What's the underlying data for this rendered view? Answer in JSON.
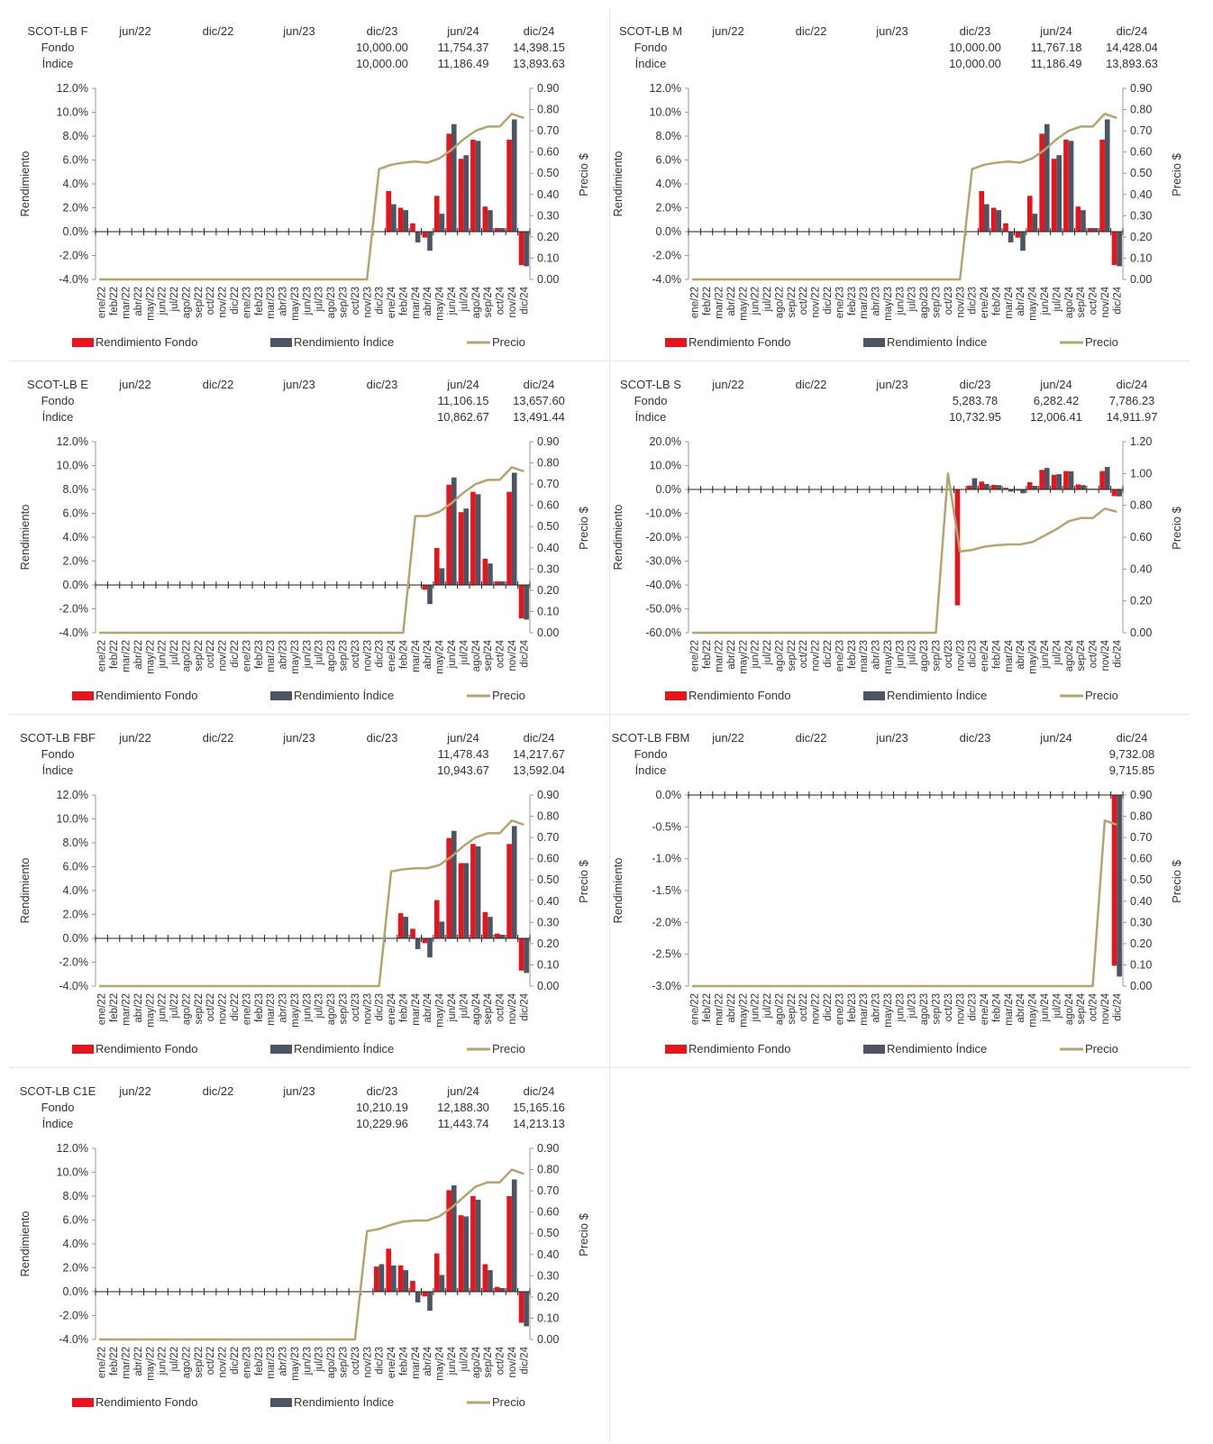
{
  "colors": {
    "fund": "#e8141b",
    "index": "#4b5563",
    "price": "#b5a370",
    "axis": "#333333"
  },
  "legend": {
    "fund": "Rendimiento Fondo",
    "index": "Rendimiento Índice",
    "price": "Precio"
  },
  "months": [
    "ene/22",
    "feb/22",
    "mar/22",
    "abr/22",
    "may/22",
    "jun/22",
    "jul/22",
    "ago/22",
    "sep/22",
    "oct/22",
    "nov/22",
    "dic/22",
    "ene/23",
    "feb/23",
    "mar/23",
    "abr/23",
    "may/23",
    "jun/23",
    "jul/23",
    "ago/23",
    "sep/23",
    "oct/23",
    "nov/23",
    "dic/23",
    "ene/24",
    "feb/24",
    "mar/24",
    "abr/24",
    "may/24",
    "jun/24",
    "jul/24",
    "ago/24",
    "sep/24",
    "oct/24",
    "nov/24",
    "dic/24"
  ],
  "header_row_labels": [
    "Fondo",
    "Índice"
  ],
  "chart_data": [
    {
      "type": "bar",
      "name": "SCOT-LB F",
      "header_cols": [
        "jun/22",
        "dic/22",
        "jun/23",
        "dic/23",
        "jun/24",
        "dic/24"
      ],
      "fondo": [
        "",
        "",
        "",
        "10,000.00",
        "11,754.37",
        "14,398.15"
      ],
      "indice": [
        "",
        "",
        "",
        "10,000.00",
        "11,186.49",
        "13,893.63"
      ],
      "ylabel": "Rendimiento",
      "y2label": "Precio $",
      "yticks": [
        "12.0%",
        "10.0%",
        "8.0%",
        "6.0%",
        "4.0%",
        "2.0%",
        "0.0%",
        "-2.0%",
        "-4.0%"
      ],
      "y2ticks": [
        "0.90",
        "0.80",
        "0.70",
        "0.60",
        "0.50",
        "0.40",
        "0.30",
        "0.20",
        "0.10",
        "0.00"
      ],
      "ylim": [
        -4,
        12
      ],
      "y2lim": [
        0,
        0.9
      ],
      "fund": [
        0,
        0,
        0,
        0,
        0,
        0,
        0,
        0,
        0,
        0,
        0,
        0,
        0,
        0,
        0,
        0,
        0,
        0,
        0,
        0,
        0,
        0,
        0,
        0,
        3.4,
        2.0,
        0.7,
        -0.5,
        3.0,
        8.2,
        6.1,
        7.7,
        2.1,
        0.3,
        7.7,
        -2.8
      ],
      "index": [
        0,
        0,
        0,
        0,
        0,
        0,
        0,
        0,
        0,
        0,
        0,
        0,
        0,
        0,
        0,
        0,
        0,
        0,
        0,
        0,
        0,
        0,
        0,
        0,
        2.3,
        1.8,
        -0.9,
        -1.6,
        1.5,
        9.0,
        6.4,
        7.6,
        1.8,
        0.3,
        9.4,
        -2.9
      ],
      "price": [
        0,
        0,
        0,
        0,
        0,
        0,
        0,
        0,
        0,
        0,
        0,
        0,
        0,
        0,
        0,
        0,
        0,
        0,
        0,
        0,
        0,
        0,
        0,
        0.52,
        0.54,
        0.55,
        0.555,
        0.55,
        0.57,
        0.61,
        0.66,
        0.7,
        0.72,
        0.72,
        0.78,
        0.76
      ],
      "price_start": 22
    },
    {
      "type": "bar",
      "name": "SCOT-LB M",
      "header_cols": [
        "jun/22",
        "dic/22",
        "jun/23",
        "dic/23",
        "jun/24",
        "dic/24"
      ],
      "fondo": [
        "",
        "",
        "",
        "10,000.00",
        "11,767.18",
        "14,428.04"
      ],
      "indice": [
        "",
        "",
        "",
        "10,000.00",
        "11,186.49",
        "13,893.63"
      ],
      "ylabel": "Rendimiento",
      "y2label": "Precio $",
      "yticks": [
        "12.0%",
        "10.0%",
        "8.0%",
        "6.0%",
        "4.0%",
        "2.0%",
        "0.0%",
        "-2.0%",
        "-4.0%"
      ],
      "y2ticks": [
        "0.90",
        "0.80",
        "0.70",
        "0.60",
        "0.50",
        "0.40",
        "0.30",
        "0.20",
        "0.10",
        "0.00"
      ],
      "ylim": [
        -4,
        12
      ],
      "y2lim": [
        0,
        0.9
      ],
      "fund": [
        0,
        0,
        0,
        0,
        0,
        0,
        0,
        0,
        0,
        0,
        0,
        0,
        0,
        0,
        0,
        0,
        0,
        0,
        0,
        0,
        0,
        0,
        0,
        0,
        3.4,
        2.0,
        0.7,
        -0.5,
        3.0,
        8.2,
        6.1,
        7.7,
        2.1,
        0.3,
        7.7,
        -2.8
      ],
      "index": [
        0,
        0,
        0,
        0,
        0,
        0,
        0,
        0,
        0,
        0,
        0,
        0,
        0,
        0,
        0,
        0,
        0,
        0,
        0,
        0,
        0,
        0,
        0,
        0,
        2.3,
        1.8,
        -0.9,
        -1.6,
        1.5,
        9.0,
        6.4,
        7.6,
        1.8,
        0.3,
        9.4,
        -2.9
      ],
      "price": [
        0,
        0,
        0,
        0,
        0,
        0,
        0,
        0,
        0,
        0,
        0,
        0,
        0,
        0,
        0,
        0,
        0,
        0,
        0,
        0,
        0,
        0,
        0,
        0.52,
        0.54,
        0.55,
        0.555,
        0.55,
        0.57,
        0.61,
        0.66,
        0.7,
        0.72,
        0.72,
        0.78,
        0.76
      ],
      "price_start": 22
    },
    {
      "type": "bar",
      "name": "SCOT-LB E",
      "header_cols": [
        "jun/22",
        "dic/22",
        "jun/23",
        "dic/23",
        "jun/24",
        "dic/24"
      ],
      "fondo": [
        "",
        "",
        "",
        "",
        "11,106.15",
        "13,657.60"
      ],
      "indice": [
        "",
        "",
        "",
        "",
        "10,862.67",
        "13,491.44"
      ],
      "ylabel": "Rendimiento",
      "y2label": "Precio $",
      "yticks": [
        "12.0%",
        "10.0%",
        "8.0%",
        "6.0%",
        "4.0%",
        "2.0%",
        "0.0%",
        "-2.0%",
        "-4.0%"
      ],
      "y2ticks": [
        "0.90",
        "0.80",
        "0.70",
        "0.60",
        "0.50",
        "0.40",
        "0.30",
        "0.20",
        "0.10",
        "0.00"
      ],
      "ylim": [
        -4,
        12
      ],
      "y2lim": [
        0,
        0.9
      ],
      "fund": [
        0,
        0,
        0,
        0,
        0,
        0,
        0,
        0,
        0,
        0,
        0,
        0,
        0,
        0,
        0,
        0,
        0,
        0,
        0,
        0,
        0,
        0,
        0,
        0,
        0,
        0,
        0,
        -0.4,
        3.1,
        8.4,
        6.1,
        7.8,
        2.2,
        0.3,
        7.8,
        -2.8
      ],
      "index": [
        0,
        0,
        0,
        0,
        0,
        0,
        0,
        0,
        0,
        0,
        0,
        0,
        0,
        0,
        0,
        0,
        0,
        0,
        0,
        0,
        0,
        0,
        0,
        0,
        0,
        0,
        0,
        -1.6,
        1.4,
        9.0,
        6.4,
        7.6,
        1.8,
        0.3,
        9.4,
        -2.9
      ],
      "price": [
        0,
        0,
        0,
        0,
        0,
        0,
        0,
        0,
        0,
        0,
        0,
        0,
        0,
        0,
        0,
        0,
        0,
        0,
        0,
        0,
        0,
        0,
        0,
        0,
        0,
        0,
        0.55,
        0.55,
        0.57,
        0.61,
        0.66,
        0.7,
        0.72,
        0.72,
        0.78,
        0.76
      ],
      "price_start": 25
    },
    {
      "type": "bar",
      "name": "SCOT-LB S",
      "header_cols": [
        "jun/22",
        "dic/22",
        "jun/23",
        "dic/23",
        "jun/24",
        "dic/24"
      ],
      "fondo": [
        "",
        "",
        "",
        "5,283.78",
        "6,282.42",
        "7,786.23"
      ],
      "indice": [
        "",
        "",
        "",
        "10,732.95",
        "12,006.41",
        "14,911.97"
      ],
      "ylabel": "Rendimiento",
      "y2label": "Precio $",
      "yticks": [
        "20.0%",
        "10.0%",
        "0.0%",
        "-10.0%",
        "-20.0%",
        "-30.0%",
        "-40.0%",
        "-50.0%",
        "-60.0%"
      ],
      "y2ticks": [
        "1.20",
        "1.00",
        "0.80",
        "0.60",
        "0.40",
        "0.20",
        "0.00"
      ],
      "ylim": [
        -60,
        20
      ],
      "y2lim": [
        0,
        1.2
      ],
      "fund": [
        0,
        0,
        0,
        0,
        0,
        0,
        0,
        0,
        0,
        0,
        0,
        0,
        0,
        0,
        0,
        0,
        0,
        0,
        0,
        0,
        0,
        0,
        -48.5,
        1.6,
        3.3,
        1.9,
        0.7,
        -0.5,
        3.0,
        8.2,
        6.1,
        7.7,
        2.1,
        0.3,
        7.7,
        -2.8
      ],
      "index": [
        0,
        0,
        0,
        0,
        0,
        0,
        0,
        0,
        0,
        0,
        0,
        0,
        0,
        0,
        0,
        0,
        0,
        0,
        0,
        0,
        0,
        0,
        0,
        4.7,
        2.3,
        1.8,
        -0.9,
        -1.6,
        1.5,
        9.0,
        6.4,
        7.6,
        1.8,
        0.3,
        9.4,
        -2.9
      ],
      "price": [
        0,
        0,
        0,
        0,
        0,
        0,
        0,
        0,
        0,
        0,
        0,
        0,
        0,
        0,
        0,
        0,
        0,
        0,
        0,
        0,
        0,
        1.0,
        0.51,
        0.52,
        0.54,
        0.55,
        0.555,
        0.555,
        0.57,
        0.61,
        0.65,
        0.7,
        0.72,
        0.72,
        0.78,
        0.76
      ],
      "price_start": 20
    },
    {
      "type": "bar",
      "name": "SCOT-LB FBF",
      "header_cols": [
        "jun/22",
        "dic/22",
        "jun/23",
        "dic/23",
        "jun/24",
        "dic/24"
      ],
      "fondo": [
        "",
        "",
        "",
        "",
        "11,478.43",
        "14,217.67"
      ],
      "indice": [
        "",
        "",
        "",
        "",
        "10,943.67",
        "13,592.04"
      ],
      "ylabel": "Rendimiento",
      "y2label": "Precio $",
      "yticks": [
        "12.0%",
        "10.0%",
        "8.0%",
        "6.0%",
        "4.0%",
        "2.0%",
        "0.0%",
        "-2.0%",
        "-4.0%"
      ],
      "y2ticks": [
        "0.90",
        "0.80",
        "0.70",
        "0.60",
        "0.50",
        "0.40",
        "0.30",
        "0.20",
        "0.10",
        "0.00"
      ],
      "ylim": [
        -4,
        12
      ],
      "y2lim": [
        0,
        0.9
      ],
      "fund": [
        0,
        0,
        0,
        0,
        0,
        0,
        0,
        0,
        0,
        0,
        0,
        0,
        0,
        0,
        0,
        0,
        0,
        0,
        0,
        0,
        0,
        0,
        0,
        0,
        0,
        2.1,
        0.8,
        -0.4,
        3.2,
        8.4,
        6.3,
        7.9,
        2.2,
        0.4,
        7.9,
        -2.7
      ],
      "index": [
        0,
        0,
        0,
        0,
        0,
        0,
        0,
        0,
        0,
        0,
        0,
        0,
        0,
        0,
        0,
        0,
        0,
        0,
        0,
        0,
        0,
        0,
        0,
        0,
        0,
        1.8,
        -0.9,
        -1.6,
        1.4,
        9.0,
        6.3,
        7.7,
        1.8,
        0.3,
        9.4,
        -2.9
      ],
      "price": [
        0,
        0,
        0,
        0,
        0,
        0,
        0,
        0,
        0,
        0,
        0,
        0,
        0,
        0,
        0,
        0,
        0,
        0,
        0,
        0,
        0,
        0,
        0,
        0,
        0.54,
        0.55,
        0.555,
        0.555,
        0.57,
        0.61,
        0.66,
        0.7,
        0.72,
        0.72,
        0.78,
        0.76
      ],
      "price_start": 23
    },
    {
      "type": "bar",
      "name": "SCOT-LB FBM",
      "header_cols": [
        "jun/22",
        "dic/22",
        "jun/23",
        "dic/23",
        "jun/24",
        "dic/24"
      ],
      "fondo": [
        "",
        "",
        "",
        "",
        "",
        "9,732.08"
      ],
      "indice": [
        "",
        "",
        "",
        "",
        "",
        "9,715.85"
      ],
      "ylabel": "Rendimiento",
      "y2label": "Precio $",
      "yticks": [
        "0.0%",
        "-0.5%",
        "-1.0%",
        "-1.5%",
        "-2.0%",
        "-2.5%",
        "-3.0%"
      ],
      "y2ticks": [
        "0.90",
        "0.80",
        "0.70",
        "0.60",
        "0.50",
        "0.40",
        "0.30",
        "0.20",
        "0.10",
        "0.00"
      ],
      "ylim": [
        -3,
        0
      ],
      "y2lim": [
        0,
        0.9
      ],
      "fund": [
        0,
        0,
        0,
        0,
        0,
        0,
        0,
        0,
        0,
        0,
        0,
        0,
        0,
        0,
        0,
        0,
        0,
        0,
        0,
        0,
        0,
        0,
        0,
        0,
        0,
        0,
        0,
        0,
        0,
        0,
        0,
        0,
        0,
        0,
        0,
        -2.68
      ],
      "index": [
        0,
        0,
        0,
        0,
        0,
        0,
        0,
        0,
        0,
        0,
        0,
        0,
        0,
        0,
        0,
        0,
        0,
        0,
        0,
        0,
        0,
        0,
        0,
        0,
        0,
        0,
        0,
        0,
        0,
        0,
        0,
        0,
        0,
        0,
        0,
        -2.85
      ],
      "price": [
        0,
        0,
        0,
        0,
        0,
        0,
        0,
        0,
        0,
        0,
        0,
        0,
        0,
        0,
        0,
        0,
        0,
        0,
        0,
        0,
        0,
        0,
        0,
        0,
        0,
        0,
        0,
        0,
        0,
        0,
        0,
        0,
        0,
        0,
        0.78,
        0.76
      ],
      "price_start": 33
    },
    {
      "type": "bar",
      "name": "SCOT-LB C1E",
      "header_cols": [
        "jun/22",
        "dic/22",
        "jun/23",
        "dic/23",
        "jun/24",
        "dic/24"
      ],
      "fondo": [
        "",
        "",
        "",
        "10,210.19",
        "12,188.30",
        "15,165.16"
      ],
      "indice": [
        "",
        "",
        "",
        "10,229.96",
        "11,443.74",
        "14,213.13"
      ],
      "ylabel": "Rendimiento",
      "y2label": "Precio $",
      "yticks": [
        "12.0%",
        "10.0%",
        "8.0%",
        "6.0%",
        "4.0%",
        "2.0%",
        "0.0%",
        "-2.0%",
        "-4.0%"
      ],
      "y2ticks": [
        "0.90",
        "0.80",
        "0.70",
        "0.60",
        "0.50",
        "0.40",
        "0.30",
        "0.20",
        "0.10",
        "0.00"
      ],
      "ylim": [
        -4,
        12
      ],
      "y2lim": [
        0,
        0.9
      ],
      "fund": [
        0,
        0,
        0,
        0,
        0,
        0,
        0,
        0,
        0,
        0,
        0,
        0,
        0,
        0,
        0,
        0,
        0,
        0,
        0,
        0,
        0,
        0,
        0,
        2.1,
        3.6,
        2.2,
        0.9,
        -0.4,
        3.2,
        8.5,
        6.4,
        8.0,
        2.3,
        0.4,
        8.0,
        -2.6
      ],
      "index": [
        0,
        0,
        0,
        0,
        0,
        0,
        0,
        0,
        0,
        0,
        0,
        0,
        0,
        0,
        0,
        0,
        0,
        0,
        0,
        0,
        0,
        0,
        0,
        2.3,
        2.2,
        1.8,
        -0.9,
        -1.6,
        1.4,
        8.9,
        6.3,
        7.7,
        1.8,
        0.3,
        9.4,
        -2.9
      ],
      "price": [
        0,
        0,
        0,
        0,
        0,
        0,
        0,
        0,
        0,
        0,
        0,
        0,
        0,
        0,
        0,
        0,
        0,
        0,
        0,
        0,
        0,
        0,
        0.51,
        0.52,
        0.54,
        0.555,
        0.56,
        0.56,
        0.58,
        0.62,
        0.67,
        0.72,
        0.74,
        0.74,
        0.8,
        0.78
      ],
      "price_start": 21
    }
  ]
}
